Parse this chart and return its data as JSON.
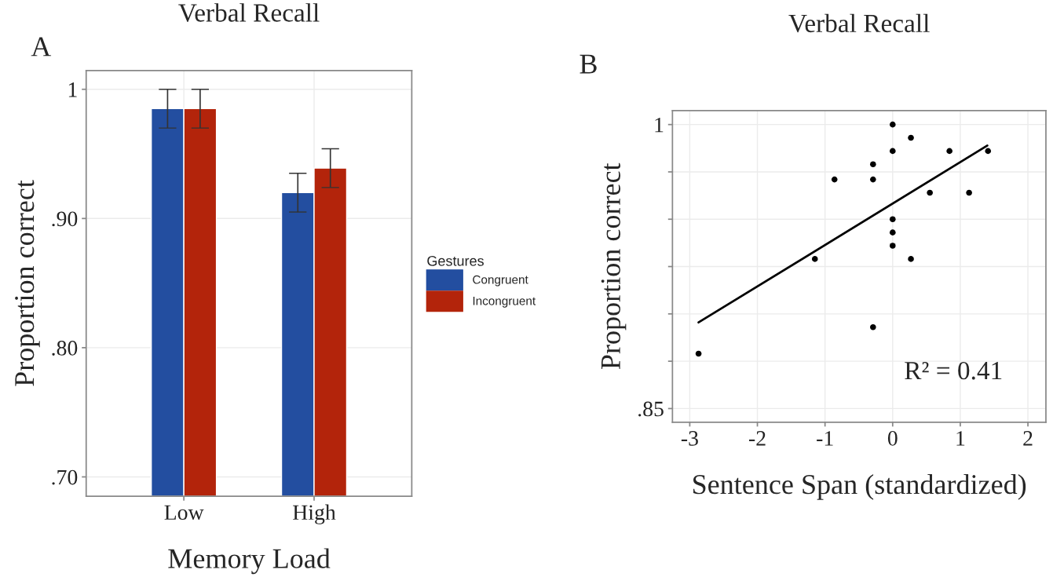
{
  "chart_data": [
    {
      "type": "bar",
      "title": "Verbal Recall",
      "xlabel": "Memory Load",
      "ylabel": "Proportion correct",
      "legend_title": "Gestures",
      "categories": [
        "Low",
        "High"
      ],
      "series": [
        {
          "name": "Congruent",
          "color": "#234ea0",
          "values": [
            0.985,
            0.92
          ],
          "errors": [
            0.015,
            0.015
          ]
        },
        {
          "name": "Incongruent",
          "color": "#b3240b",
          "values": [
            0.985,
            0.939
          ],
          "errors": [
            0.015,
            0.015
          ]
        }
      ],
      "ylim": [
        0.685,
        1.0145
      ],
      "yticks": [
        {
          "value": 0.7,
          "label": ".70"
        },
        {
          "value": 0.8,
          "label": ".80"
        },
        {
          "value": 0.9,
          "label": ".90"
        },
        1
      ],
      "grid": true,
      "legend": "right",
      "annotations": [
        "A"
      ]
    },
    {
      "type": "scatter",
      "title": "Verbal Recall",
      "xlabel": "Sentence Span (standardized)",
      "ylabel": "Proportion correct",
      "series": [
        {
          "type": "scatter",
          "color": "#000000",
          "marker": "circle",
          "x": [
            0,
            0.27,
            0,
            0.84,
            1.41,
            -0.29,
            -0.86,
            -0.29,
            0.55,
            1.13,
            0,
            0,
            0,
            -1.15,
            0.27,
            -0.29,
            -2.87
          ],
          "values": [
            1.0,
            0.993,
            0.986,
            0.986,
            0.986,
            0.979,
            0.971,
            0.971,
            0.964,
            0.964,
            0.95,
            0.943,
            0.936,
            0.929,
            0.929,
            0.893,
            0.879
          ]
        },
        {
          "type": "line",
          "color": "#000000",
          "x": [
            -2.87,
            1.4
          ],
          "values": [
            0.8955,
            0.9889
          ]
        }
      ],
      "xlim": [
        -3.256,
        2.266
      ],
      "xticks": [
        -3,
        -2,
        -1,
        0,
        1,
        2
      ],
      "ylim": [
        0.8428,
        1.0074
      ],
      "yticks": [
        {
          "value": 0.85,
          "label": ".85"
        },
        {
          "value": 0.875,
          "label": null
        },
        {
          "value": 0.9,
          "label": null
        },
        {
          "value": 0.925,
          "label": null
        },
        {
          "value": 0.95,
          "label": null
        },
        {
          "value": 0.975,
          "label": null
        },
        1
      ],
      "grid": true,
      "annotations": [
        "B",
        "R² = 0.41"
      ]
    }
  ]
}
